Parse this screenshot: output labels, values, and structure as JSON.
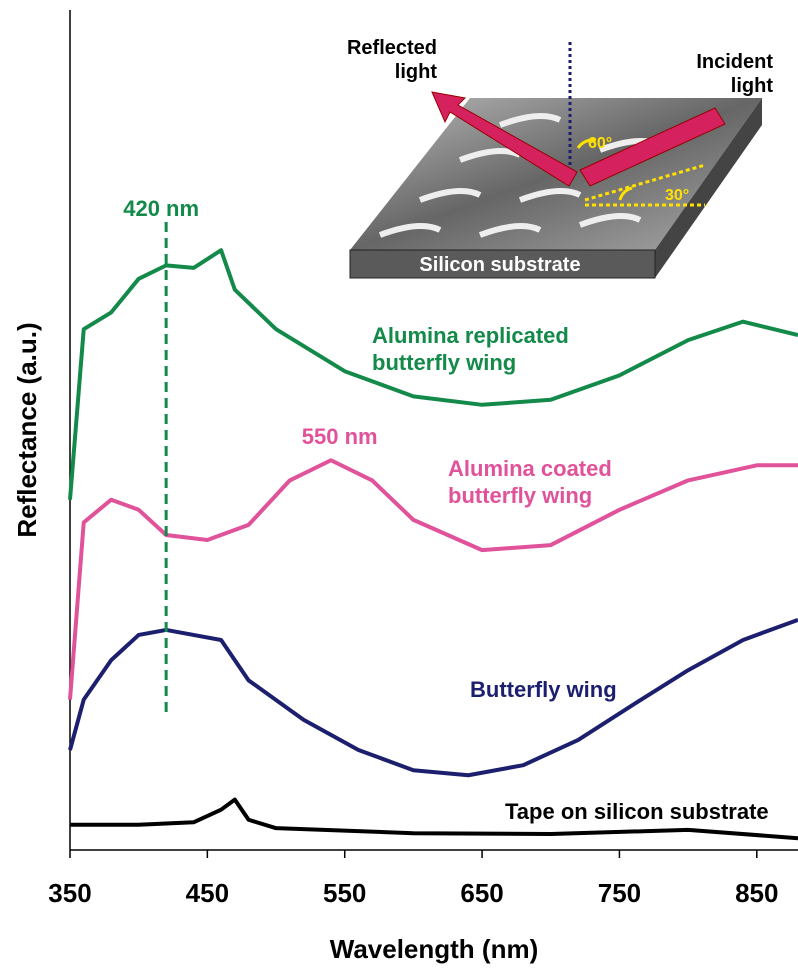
{
  "chart_data": {
    "type": "line",
    "x_label": "Wavelength (nm)",
    "y_label": "Reflectance (a.u.)",
    "xlim": [
      350,
      880
    ],
    "ylim": [
      0,
      100
    ],
    "xticks": [
      350,
      450,
      550,
      650,
      750,
      850
    ],
    "series": [
      {
        "name": "Alumina replicated butterfly wing",
        "color": "#138a4a",
        "x": [
          350,
          360,
          380,
          400,
          420,
          440,
          460,
          470,
          500,
          550,
          600,
          650,
          700,
          750,
          800,
          840,
          880
        ],
        "values": [
          41.7,
          62,
          64,
          68,
          69.6,
          69.3,
          71.4,
          66.7,
          62,
          57,
          54,
          53,
          53.6,
          56.5,
          60.7,
          62.9,
          61.3
        ]
      },
      {
        "name": "Alumina coated butterfly wing",
        "color": "#e0529a",
        "x": [
          350,
          360,
          380,
          400,
          420,
          450,
          480,
          510,
          540,
          570,
          600,
          650,
          700,
          750,
          800,
          850,
          880
        ],
        "values": [
          17.9,
          39,
          41.7,
          40.5,
          37.5,
          36.9,
          38.7,
          44,
          46.4,
          44,
          39.3,
          35.7,
          36.3,
          40.5,
          44,
          45.8,
          45.8
        ]
      },
      {
        "name": "Butterfly wing",
        "color": "#1c1f6e",
        "x": [
          350,
          360,
          380,
          400,
          420,
          460,
          480,
          520,
          560,
          600,
          640,
          680,
          720,
          760,
          800,
          840,
          880
        ],
        "values": [
          11.9,
          17.9,
          22.6,
          25.6,
          26.2,
          25,
          20.2,
          15.5,
          11.9,
          9.5,
          8.9,
          10.1,
          13.1,
          17.3,
          21.4,
          25,
          27.4
        ]
      },
      {
        "name": "Tape on silicon substrate",
        "color": "#000000",
        "x": [
          350,
          400,
          440,
          460,
          470,
          480,
          500,
          600,
          700,
          800,
          880
        ],
        "values": [
          3,
          3,
          3.3,
          4.8,
          6,
          3.6,
          2.6,
          2,
          1.9,
          2.4,
          1.4
        ]
      }
    ],
    "annotations": [
      {
        "text": "420 nm",
        "x": 420,
        "color": "#138a4a"
      },
      {
        "text": "550 nm",
        "x": 550,
        "color": "#e0529a"
      }
    ],
    "inset": {
      "reflected": "Reflected light",
      "incident": "Incident light",
      "angle1": "60°",
      "angle2": "30°",
      "substrate": "Silicon substrate"
    }
  }
}
